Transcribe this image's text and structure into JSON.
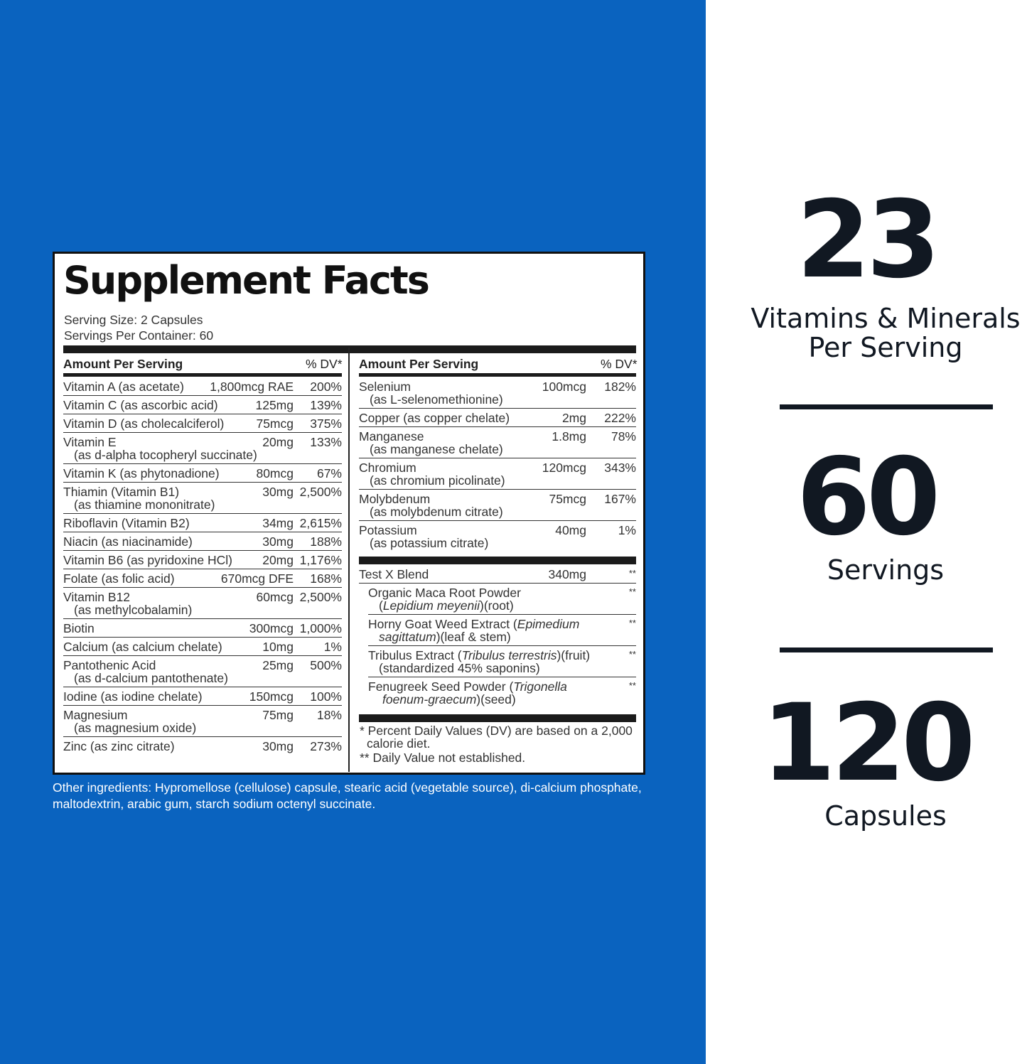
{
  "facts": {
    "title": "Supplement Facts",
    "serving_size": "Serving Size: 2 Capsules",
    "servings_per_container": "Servings Per Container: 60",
    "col_header_amount": "Amount Per Serving",
    "col_header_dv": "% DV*",
    "left_rows": [
      {
        "name": "Vitamin A (as acetate)",
        "sub": "",
        "amount": "1,800mcg RAE",
        "dv": "200%"
      },
      {
        "name": "Vitamin C (as ascorbic acid)",
        "sub": "",
        "amount": "125mg",
        "dv": "139%"
      },
      {
        "name": "Vitamin D (as cholecalciferol)",
        "sub": "",
        "amount": "75mcg",
        "dv": "375%"
      },
      {
        "name": "Vitamin E",
        "sub": "(as d-alpha tocopheryl succinate)",
        "amount": "20mg",
        "dv": "133%"
      },
      {
        "name": "Vitamin K (as phytonadione)",
        "sub": "",
        "amount": "80mcg",
        "dv": "67%"
      },
      {
        "name": "Thiamin (Vitamin B1)",
        "sub": "(as thiamine mononitrate)",
        "amount": "30mg",
        "dv": "2,500%"
      },
      {
        "name": "Riboflavin (Vitamin B2)",
        "sub": "",
        "amount": "34mg",
        "dv": "2,615%"
      },
      {
        "name": "Niacin (as niacinamide)",
        "sub": "",
        "amount": "30mg",
        "dv": "188%"
      },
      {
        "name": "Vitamin B6 (as pyridoxine HCl)",
        "sub": "",
        "amount": "20mg",
        "dv": "1,176%"
      },
      {
        "name": "Folate (as folic acid)",
        "sub": "",
        "amount": "670mcg DFE",
        "dv": "168%"
      },
      {
        "name": "Vitamin B12",
        "sub": "(as methylcobalamin)",
        "amount": "60mcg",
        "dv": "2,500%"
      },
      {
        "name": "Biotin",
        "sub": "",
        "amount": "300mcg",
        "dv": "1,000%"
      },
      {
        "name": "Calcium (as calcium chelate)",
        "sub": "",
        "amount": "10mg",
        "dv": "1%"
      },
      {
        "name": "Pantothenic Acid",
        "sub": "(as d-calcium pantothenate)",
        "amount": "25mg",
        "dv": "500%"
      },
      {
        "name": "Iodine (as iodine chelate)",
        "sub": "",
        "amount": "150mcg",
        "dv": "100%"
      },
      {
        "name": "Magnesium",
        "sub": "(as magnesium oxide)",
        "amount": "75mg",
        "dv": "18%"
      },
      {
        "name": "Zinc (as zinc citrate)",
        "sub": "",
        "amount": "30mg",
        "dv": "273%"
      }
    ],
    "right_rows": [
      {
        "name": "Selenium",
        "sub": "(as L-selenomethionine)",
        "amount": "100mcg",
        "dv": "182%"
      },
      {
        "name": "Copper (as copper chelate)",
        "sub": "",
        "amount": "2mg",
        "dv": "222%"
      },
      {
        "name": "Manganese",
        "sub": "(as manganese chelate)",
        "amount": "1.8mg",
        "dv": "78%"
      },
      {
        "name": "Chromium",
        "sub": "(as chromium picolinate)",
        "amount": "120mcg",
        "dv": "343%"
      },
      {
        "name": "Molybdenum",
        "sub": "(as molybdenum citrate)",
        "amount": "75mcg",
        "dv": "167%"
      },
      {
        "name": "Potassium",
        "sub": "(as potassium citrate)",
        "amount": "40mg",
        "dv": "1%"
      }
    ],
    "blend": {
      "name": "Test X Blend",
      "amount": "340mg",
      "dv": "**",
      "items": [
        {
          "pre": "Organic Maca Root Powder",
          "line2_pre": "(",
          "italic": "Lepidium meyenii",
          "line2_post": ")(root)",
          "dv": "**"
        },
        {
          "pre": "Horny Goat Weed Extract (",
          "italic1": "Epimedium",
          "italic2": "sagittatum",
          "post": ")(leaf & stem)",
          "dv": "**"
        },
        {
          "pre": "Tribulus Extract (",
          "italic": "Tribulus terrestris",
          "post": ")(fruit)",
          "line2": "(standardized 45% saponins)",
          "dv": "**"
        },
        {
          "pre": "Fenugreek Seed Powder (",
          "italic1": "Trigonella",
          "italic2": "foenum-graecum",
          "post": ")(seed)",
          "dv": "**"
        }
      ]
    },
    "footnote_1": "* Percent Daily Values (DV) are based on a 2,000",
    "footnote_1b": "calorie diet.",
    "footnote_2": "** Daily Value not established."
  },
  "other_ingredients": "Other ingredients: Hypromellose (cellulose) capsule, stearic acid (vegetable source), di-calcium phosphate, maltodextrin, arabic gum, starch sodium octenyl succinate.",
  "stats": [
    {
      "number": "23",
      "label_line1": "Vitamins & Minerals",
      "label_line2": "Per Serving"
    },
    {
      "number": "60",
      "label_line1": "Servings",
      "label_line2": ""
    },
    {
      "number": "120",
      "label_line1": "Capsules",
      "label_line2": ""
    }
  ],
  "colors": {
    "blue_panel": "#0a63bf",
    "stat_text": "#111822"
  }
}
